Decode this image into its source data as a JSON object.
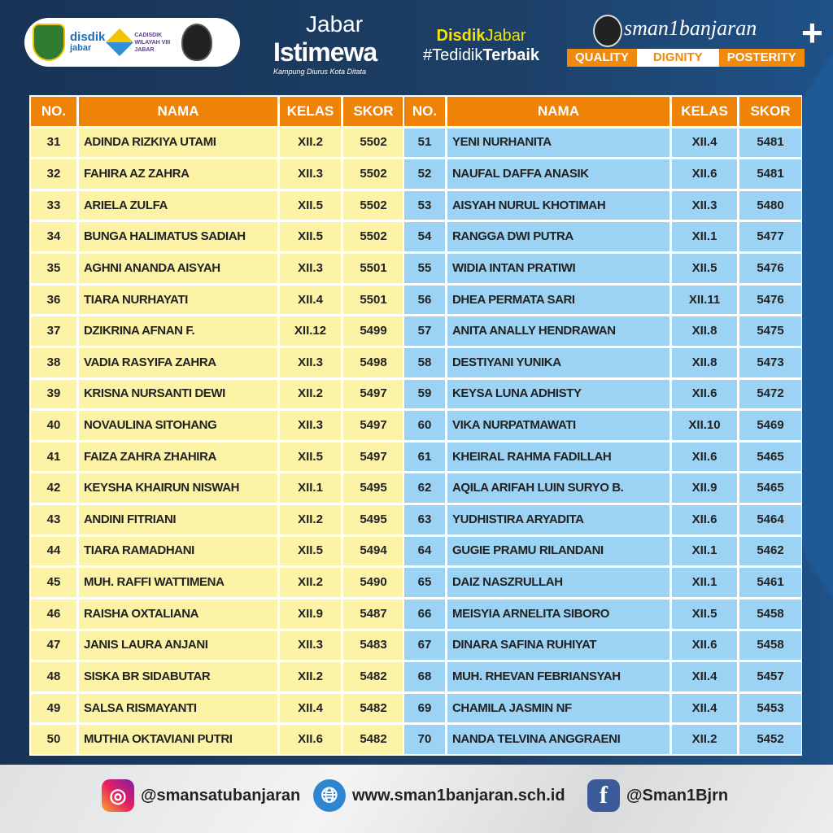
{
  "header": {
    "disdik": "disdik",
    "disdik_sub": "jabar",
    "cadisdik": "CADISDIK WILAYAH VIII JABAR",
    "jabar_line1": "Jabar",
    "jabar_line2": "Istimewa",
    "jabar_tagline": "Kampung Diurus Kota Ditata",
    "tag_line1_a": "Disdik",
    "tag_line1_b": "Jabar",
    "tag_line2_a": "#Tedidik",
    "tag_line2_b": "Terbaik",
    "school_name": "sman1banjaran",
    "motto": [
      "QUALITY",
      "DIGNITY",
      "POSTERITY"
    ]
  },
  "columns": [
    "NO.",
    "NAMA",
    "KELAS",
    "SKOR"
  ],
  "colors": {
    "header": "#ee8307",
    "left_rows": "#fdf3a6",
    "right_rows": "#9cd3f4",
    "background": "#1b3a5e"
  },
  "left_table": [
    [
      "31",
      "ADINDA RIZKIYA UTAMI",
      "XII.2",
      "5502"
    ],
    [
      "32",
      "FAHIRA AZ ZAHRA",
      "XII.3",
      "5502"
    ],
    [
      "33",
      "ARIELA ZULFA",
      "XII.5",
      "5502"
    ],
    [
      "34",
      "BUNGA HALIMATUS SADIAH",
      "XII.5",
      "5502"
    ],
    [
      "35",
      "AGHNI ANANDA AISYAH",
      "XII.3",
      "5501"
    ],
    [
      "36",
      "TIARA NURHAYATI",
      "XII.4",
      "5501"
    ],
    [
      "37",
      "DZIKRINA AFNAN F.",
      "XII.12",
      "5499"
    ],
    [
      "38",
      "VADIA RASYIFA ZAHRA",
      "XII.3",
      "5498"
    ],
    [
      "39",
      "KRISNA NURSANTI DEWI",
      "XII.2",
      "5497"
    ],
    [
      "40",
      "NOVAULINA SITOHANG",
      "XII.3",
      "5497"
    ],
    [
      "41",
      "FAIZA ZAHRA ZHAHIRA",
      "XII.5",
      "5497"
    ],
    [
      "42",
      "KEYSHA KHAIRUN NISWAH",
      "XII.1",
      "5495"
    ],
    [
      "43",
      "ANDINI FITRIANI",
      "XII.2",
      "5495"
    ],
    [
      "44",
      "TIARA RAMADHANI",
      "XII.5",
      "5494"
    ],
    [
      "45",
      "MUH. RAFFI WATTIMENA",
      "XII.2",
      "5490"
    ],
    [
      "46",
      "RAISHA OXTALIANA",
      "XII.9",
      "5487"
    ],
    [
      "47",
      "JANIS LAURA ANJANI",
      "XII.3",
      "5483"
    ],
    [
      "48",
      "SISKA BR SIDABUTAR",
      "XII.2",
      "5482"
    ],
    [
      "49",
      "SALSA RISMAYANTI",
      "XII.4",
      "5482"
    ],
    [
      "50",
      "MUTHIA OKTAVIANI PUTRI",
      "XII.6",
      "5482"
    ]
  ],
  "right_table": [
    [
      "51",
      "YENI NURHANITA",
      "XII.4",
      "5481"
    ],
    [
      "52",
      "NAUFAL DAFFA ANASIK",
      "XII.6",
      "5481"
    ],
    [
      "53",
      "AISYAH NURUL KHOTIMAH",
      "XII.3",
      "5480"
    ],
    [
      "54",
      "RANGGA DWI PUTRA",
      "XII.1",
      "5477"
    ],
    [
      "55",
      "WIDIA INTAN PRATIWI",
      "XII.5",
      "5476"
    ],
    [
      "56",
      "DHEA PERMATA SARI",
      "XII.11",
      "5476"
    ],
    [
      "57",
      "ANITA ANALLY HENDRAWAN",
      "XII.8",
      "5475"
    ],
    [
      "58",
      "DESTIYANI YUNIKA",
      "XII.8",
      "5473"
    ],
    [
      "59",
      "KEYSA LUNA ADHISTY",
      "XII.6",
      "5472"
    ],
    [
      "60",
      "VIKA NURPATMAWATI",
      "XII.10",
      "5469"
    ],
    [
      "61",
      "KHEIRAL RAHMA FADILLAH",
      "XII.6",
      "5465"
    ],
    [
      "62",
      "AQILA ARIFAH LUIN SURYO B.",
      "XII.9",
      "5465"
    ],
    [
      "63",
      "YUDHISTIRA ARYADITA",
      "XII.6",
      "5464"
    ],
    [
      "64",
      "GUGIE PRAMU RILANDANI",
      "XII.1",
      "5462"
    ],
    [
      "65",
      "DAIZ NASZRULLAH",
      "XII.1",
      "5461"
    ],
    [
      "66",
      "MEISYIA ARNELITA SIBORO",
      "XII.5",
      "5458"
    ],
    [
      "67",
      "DINARA SAFINA RUHIYAT",
      "XII.6",
      "5458"
    ],
    [
      "68",
      "MUH. RHEVAN FEBRIANSYAH",
      "XII.4",
      "5457"
    ],
    [
      "69",
      "CHAMILA JASMIN NF",
      "XII.4",
      "5453"
    ],
    [
      "70",
      "NANDA TELVINA ANGGRAENI",
      "XII.2",
      "5452"
    ]
  ],
  "footer": {
    "instagram": "@smansatubanjaran",
    "website": "www.sman1banjaran.sch.id",
    "facebook": "@Sman1Bjrn",
    "icons": [
      "instagram-icon",
      "globe-icon",
      "facebook-icon"
    ]
  }
}
